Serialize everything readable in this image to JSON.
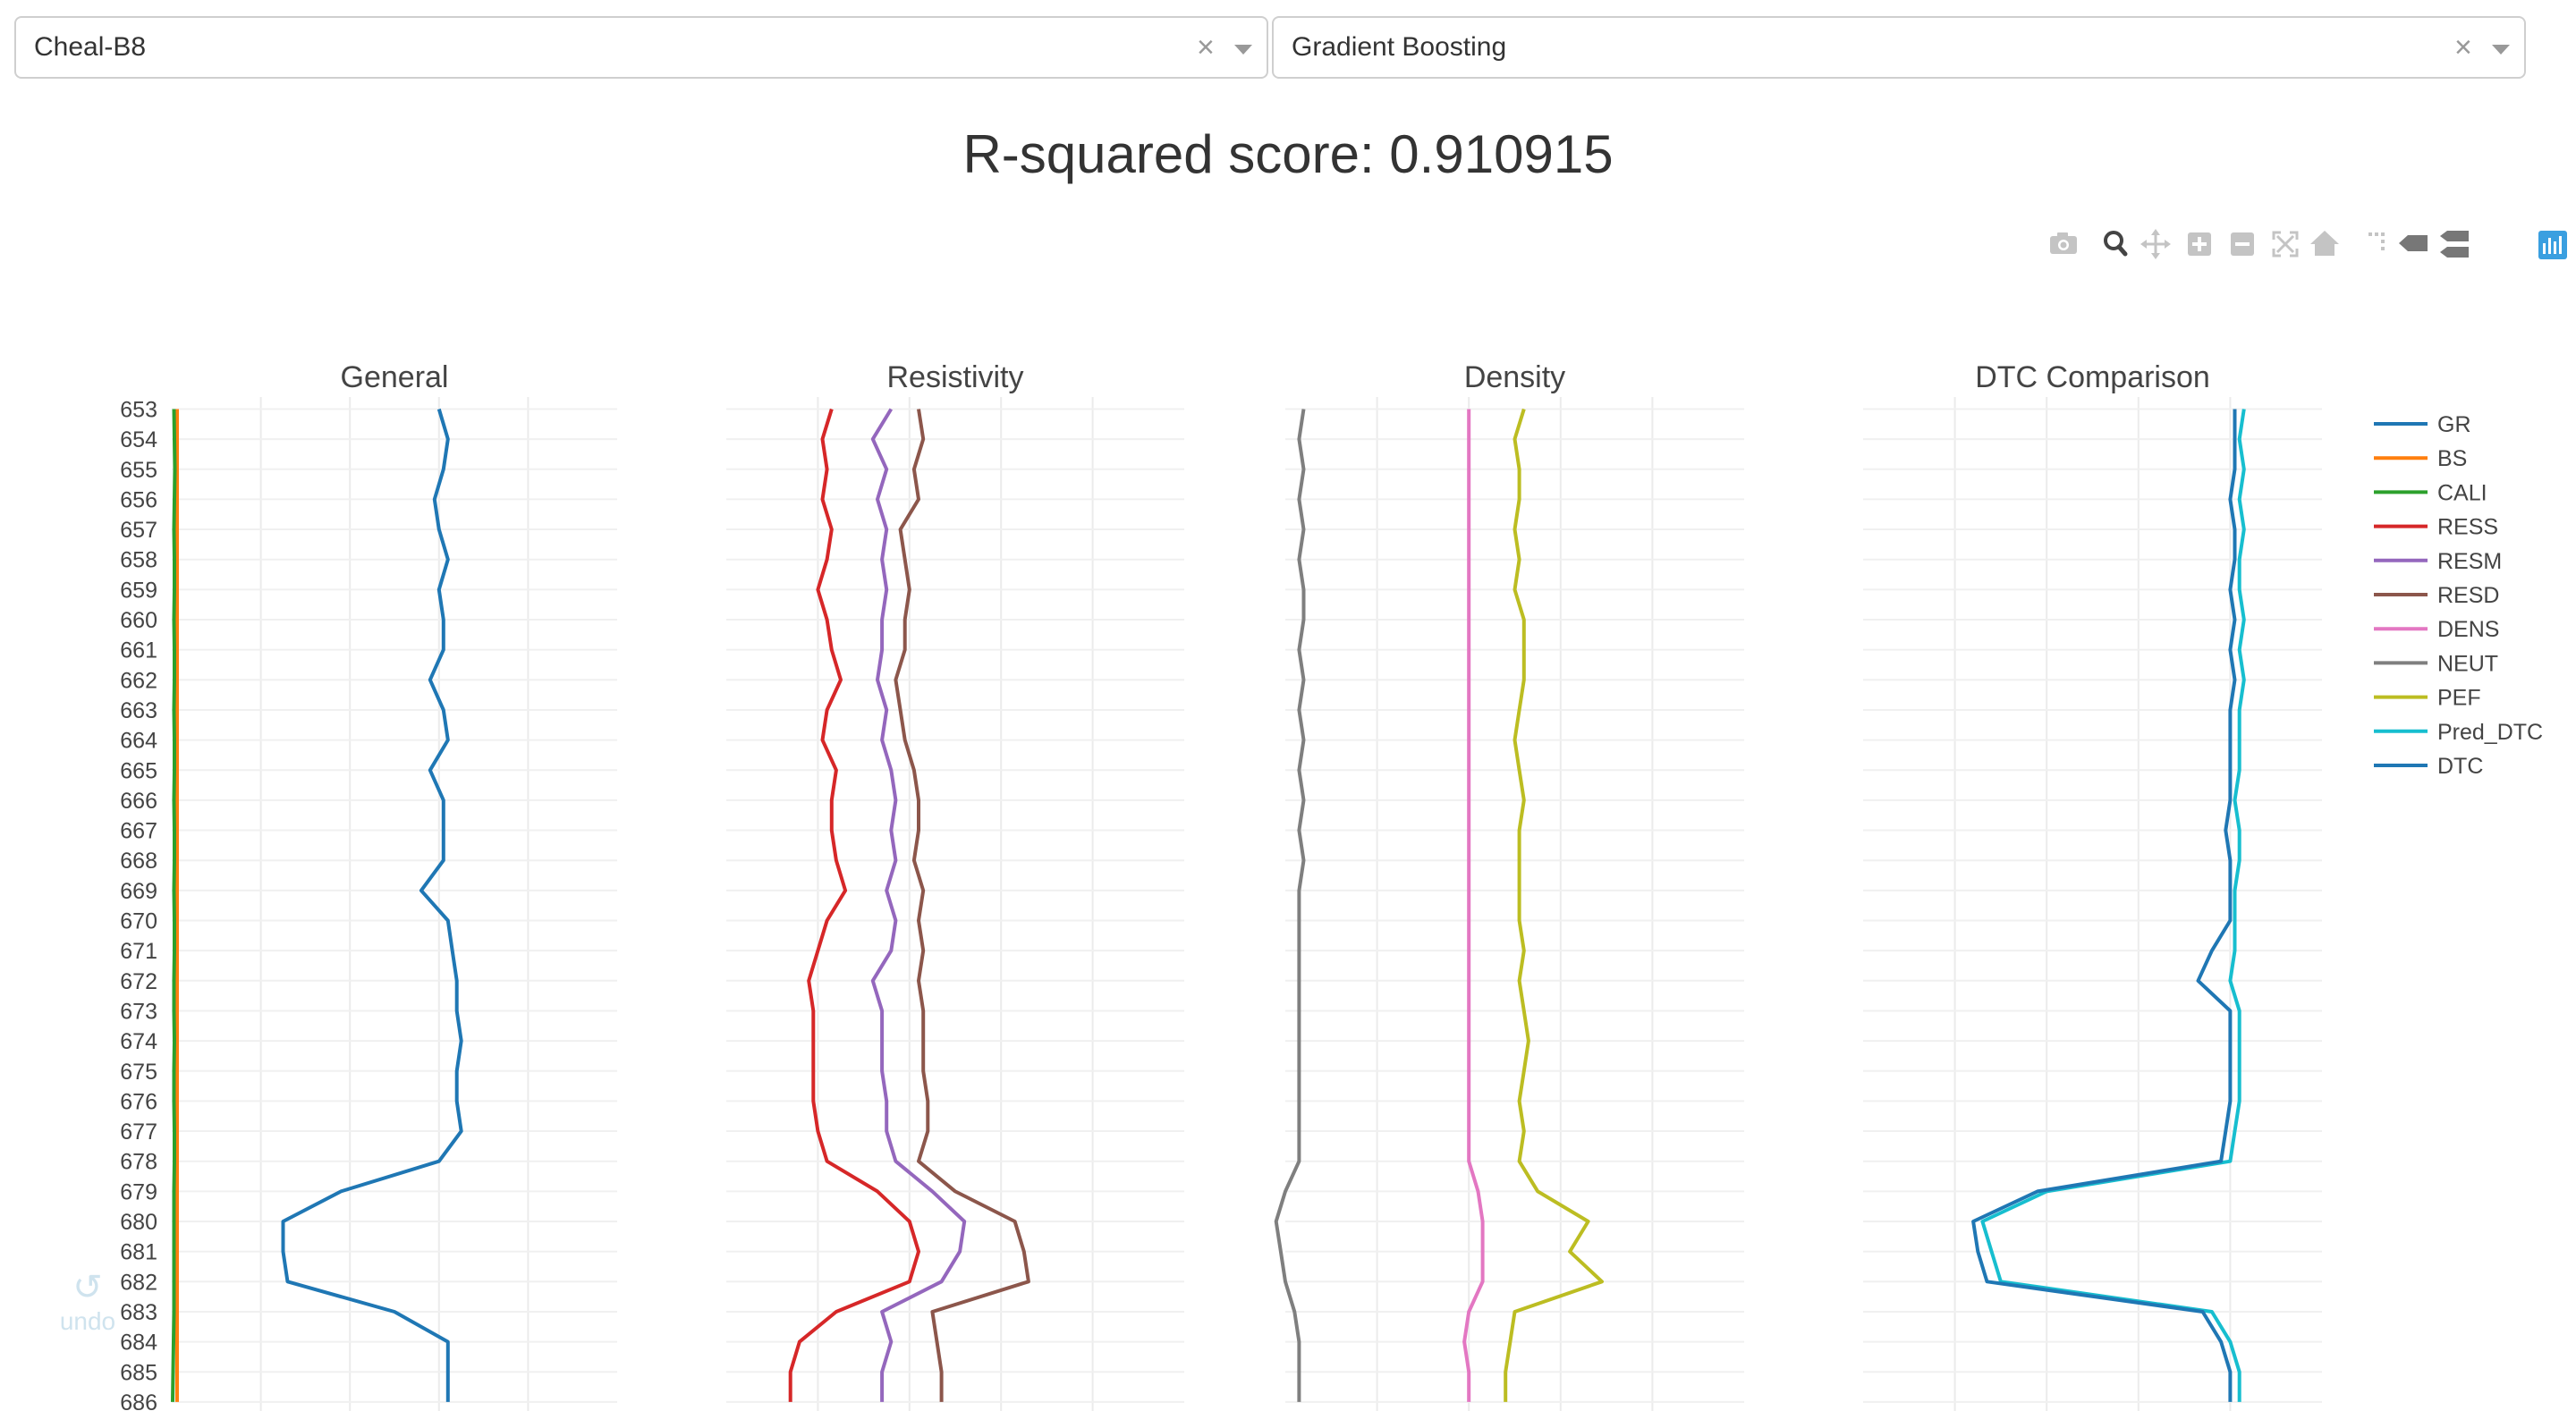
{
  "controls": {
    "well_select": {
      "value": "Cheal-B8"
    },
    "model_select": {
      "value": "Gradient Boosting"
    }
  },
  "title": "R-squared score: 0.910915",
  "undo": {
    "label": "undo"
  },
  "modebar": {
    "icons": [
      "camera-icon",
      "zoom-icon",
      "pan-icon",
      "zoom-in-icon",
      "zoom-out-icon",
      "autoscale-icon",
      "reset-axes-icon",
      "spike-lines-icon",
      "hover-closest-icon",
      "hover-compare-icon",
      "plotly-logo-icon"
    ]
  },
  "colors": {
    "GR": "#1f77b4",
    "BS": "#ff7f0e",
    "CALI": "#2ca02c",
    "RESS": "#d62728",
    "RESM": "#9467bd",
    "RESD": "#8c564b",
    "DENS": "#e377c2",
    "NEUT": "#7f7f7f",
    "PEF": "#bcbd22",
    "Pred_DTC": "#17becf",
    "DTC": "#1f77b4"
  },
  "chart_data": {
    "type": "line",
    "orientation": "vertical-depth",
    "y": [
      653,
      654,
      655,
      656,
      657,
      658,
      659,
      660,
      661,
      662,
      663,
      664,
      665,
      666,
      667,
      668,
      669,
      670,
      671,
      672,
      673,
      674,
      675,
      676,
      677,
      678,
      679,
      680,
      681,
      682,
      683,
      684,
      685,
      686
    ],
    "ylim": [
      652.6,
      686.3
    ],
    "yticks": [
      "653",
      "654",
      "655",
      "656",
      "657",
      "658",
      "659",
      "660",
      "661",
      "662",
      "663",
      "664",
      "665",
      "666",
      "667",
      "668",
      "669",
      "670",
      "671",
      "672",
      "673",
      "674",
      "675",
      "676",
      "677",
      "678",
      "679",
      "680",
      "681",
      "682",
      "683",
      "684",
      "685",
      "686"
    ],
    "legend": [
      "GR",
      "BS",
      "CALI",
      "RESS",
      "RESM",
      "RESD",
      "DENS",
      "NEUT",
      "PEF",
      "Pred_DTC",
      "DTC"
    ],
    "legend_position": "right",
    "panels": [
      {
        "title": "General",
        "xlim": [
          0,
          100
        ],
        "series": [
          {
            "name": "GR",
            "values": [
              60,
              62,
              61,
              59,
              60,
              62,
              60,
              61,
              61,
              58,
              61,
              62,
              58,
              61,
              61,
              61,
              56,
              62,
              63,
              64,
              64,
              65,
              64,
              64,
              65,
              60,
              38,
              25,
              25,
              26,
              50,
              62,
              62,
              62
            ]
          },
          {
            "name": "BS",
            "values": [
              1.2,
              1.2,
              1.2,
              1.2,
              1.2,
              1.2,
              1.2,
              1.2,
              1.2,
              1.2,
              1.2,
              1.2,
              1.2,
              1.2,
              1.2,
              1.2,
              1.2,
              1.2,
              1.2,
              1.2,
              1.2,
              1.2,
              1.2,
              1.2,
              1.2,
              1.2,
              1.2,
              1.2,
              1.2,
              1.2,
              1.2,
              1.2,
              1.2,
              1.2
            ]
          },
          {
            "name": "CALI",
            "values": [
              0.5,
              0.6,
              0.7,
              0.6,
              0.5,
              0.6,
              0.6,
              0.5,
              0.6,
              0.6,
              0.5,
              0.6,
              0.6,
              0.5,
              0.6,
              0.6,
              0.5,
              0.6,
              0.6,
              0.5,
              0.5,
              0.6,
              0.5,
              0.5,
              0.6,
              0.6,
              0.5,
              0.5,
              0.5,
              0.5,
              0.5,
              0.4,
              0.3,
              0.2
            ]
          }
        ]
      },
      {
        "title": "Resistivity",
        "xlim": [
          0,
          100
        ],
        "series": [
          {
            "name": "RESS",
            "values": [
              23,
              21,
              22,
              21,
              23,
              22,
              20,
              22,
              23,
              25,
              22,
              21,
              24,
              23,
              23,
              24,
              26,
              22,
              20,
              18,
              19,
              19,
              19,
              19,
              20,
              22,
              33,
              40,
              42,
              40,
              24,
              16,
              14,
              14
            ]
          },
          {
            "name": "RESM",
            "values": [
              36,
              32,
              35,
              33,
              35,
              34,
              35,
              34,
              34,
              33,
              35,
              34,
              36,
              37,
              36,
              37,
              35,
              37,
              36,
              32,
              34,
              34,
              34,
              35,
              35,
              37,
              45,
              52,
              51,
              47,
              34,
              36,
              34,
              34
            ]
          },
          {
            "name": "RESD",
            "values": [
              42,
              43,
              41,
              42,
              38,
              39,
              40,
              39,
              39,
              37,
              38,
              39,
              41,
              42,
              42,
              41,
              43,
              42,
              43,
              42,
              43,
              43,
              43,
              44,
              44,
              42,
              50,
              63,
              65,
              66,
              45,
              46,
              47,
              47
            ]
          }
        ]
      },
      {
        "title": "Density",
        "xlim": [
          0,
          100
        ],
        "series": [
          {
            "name": "NEUT",
            "values": [
              4,
              3,
              4,
              3,
              4,
              3,
              4,
              4,
              3,
              4,
              3,
              4,
              3,
              4,
              3,
              4,
              3,
              3,
              3,
              3,
              3,
              3,
              3,
              3,
              3,
              3,
              0,
              -2,
              -1,
              0,
              2,
              3,
              3,
              3
            ]
          },
          {
            "name": "DENS",
            "values": [
              40,
              40,
              40,
              40,
              40,
              40,
              40,
              40,
              40,
              40,
              40,
              40,
              40,
              40,
              40,
              40,
              40,
              40,
              40,
              40,
              40,
              40,
              40,
              40,
              40,
              40,
              42,
              43,
              43,
              43,
              40,
              39,
              40,
              40
            ]
          },
          {
            "name": "PEF",
            "values": [
              52,
              50,
              51,
              51,
              50,
              51,
              50,
              52,
              52,
              52,
              51,
              50,
              51,
              52,
              51,
              51,
              51,
              51,
              52,
              51,
              52,
              53,
              52,
              51,
              52,
              51,
              55,
              66,
              62,
              69,
              50,
              49,
              48,
              48
            ]
          }
        ]
      },
      {
        "title": "DTC Comparison",
        "xlim": [
          0,
          100
        ],
        "series": [
          {
            "name": "Pred_DTC",
            "values": [
              83,
              82,
              83,
              82,
              83,
              82,
              82,
              83,
              82,
              83,
              82,
              82,
              82,
              81,
              82,
              82,
              81,
              81,
              81,
              80,
              82,
              82,
              82,
              82,
              81,
              80,
              40,
              26,
              28,
              30,
              76,
              80,
              82,
              82
            ]
          },
          {
            "name": "DTC",
            "values": [
              81,
              81,
              81,
              80,
              81,
              81,
              80,
              81,
              80,
              81,
              80,
              80,
              80,
              80,
              79,
              80,
              80,
              80,
              76,
              73,
              80,
              80,
              80,
              80,
              79,
              78,
              38,
              24,
              25,
              27,
              74,
              78,
              80,
              80
            ]
          }
        ]
      }
    ]
  }
}
